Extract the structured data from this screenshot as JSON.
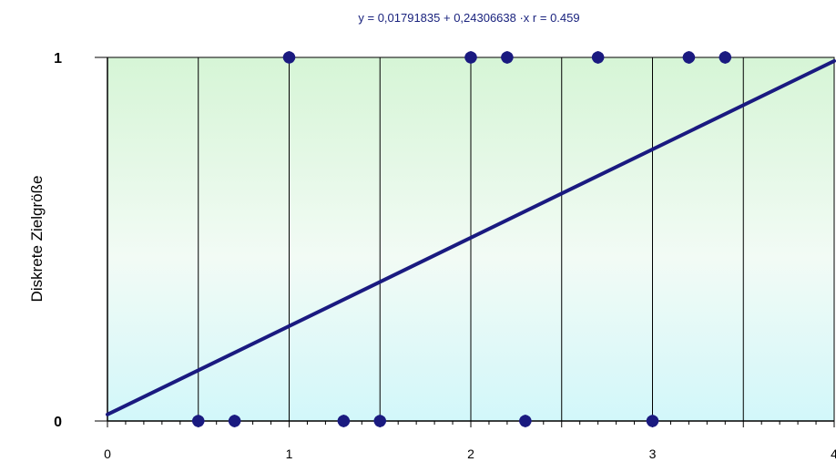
{
  "chart_data": {
    "type": "scatter",
    "title": "y = 0,01791835  +  0,24306638 ·x   r = 0.459",
    "xlabel": "",
    "ylabel": "Diskrete Zielgröße",
    "xlim": [
      0,
      4
    ],
    "ylim": [
      0,
      1
    ],
    "x_ticks": [
      "0",
      "1",
      "2",
      "3",
      "4"
    ],
    "y_ticks": [
      "0",
      "1"
    ],
    "grid": "vertical",
    "series": [
      {
        "points": [
          [
            0.5,
            0
          ],
          [
            0.7,
            0
          ],
          [
            1.3,
            0
          ],
          [
            1.5,
            0
          ],
          [
            2.3,
            0
          ],
          [
            3.0,
            0
          ],
          [
            1.0,
            1
          ],
          [
            2.0,
            1
          ],
          [
            2.2,
            1
          ],
          [
            2.7,
            1
          ],
          [
            3.2,
            1
          ],
          [
            3.4,
            1
          ]
        ]
      }
    ],
    "regression": {
      "intercept": 0.01791835,
      "slope": 0.24306638,
      "x_range": [
        0,
        4
      ]
    },
    "colors": {
      "marker": "#1a1a80",
      "line": "#1a1a80",
      "bg_top": "#d6f5d6",
      "bg_bottom": "#d2f7fa"
    }
  }
}
